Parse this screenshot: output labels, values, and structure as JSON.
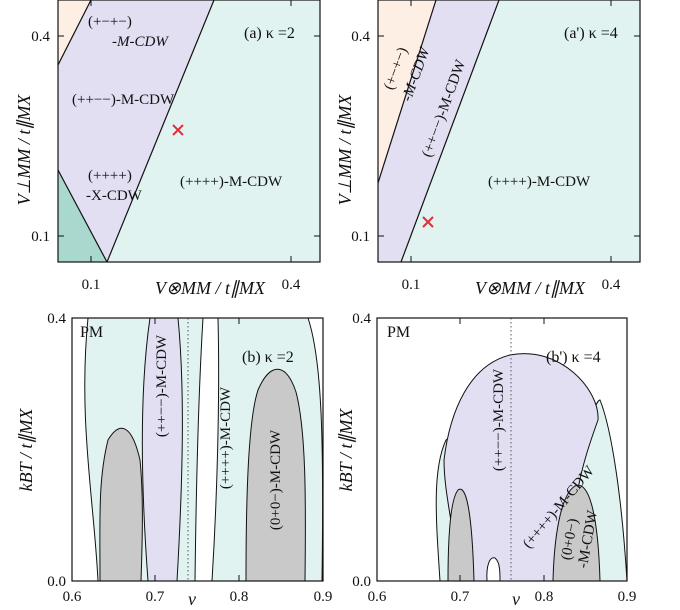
{
  "chart_data": [
    {
      "panel": "a",
      "type": "area",
      "title": "(a) κ =2",
      "xlabel": "V⊗MM / t∥MX",
      "ylabel": "V⊥MM / t∥MX",
      "xlim": [
        0.06,
        0.46
      ],
      "ylim": [
        0.06,
        0.46
      ],
      "xticks": [
        "0.1",
        "0.4"
      ],
      "yticks": [
        "0.1",
        "0.4"
      ],
      "regions": [
        {
          "label": "(+−+−)-M-CDW",
          "color": "#fdefe4",
          "polygon": [
            [
              0.06,
              0.46
            ],
            [
              0.06,
              0.36
            ],
            [
              0.11,
              0.46
            ]
          ]
        },
        {
          "label": "(++−−)-M-CDW",
          "color": "#e2dff2",
          "polygon": [
            [
              0.06,
              0.36
            ],
            [
              0.11,
              0.46
            ],
            [
              0.298,
              0.46
            ],
            [
              0.135,
              0.06
            ],
            [
              0.06,
              0.2
            ]
          ]
        },
        {
          "label": "(++++)-X-CDW",
          "color": "#a9d8cf",
          "polygon": [
            [
              0.06,
              0.2
            ],
            [
              0.06,
              0.06
            ],
            [
              0.135,
              0.06
            ]
          ]
        },
        {
          "label": "(++++)-M-CDW",
          "color": "#e0f3f1",
          "polygon": [
            [
              0.298,
              0.46
            ],
            [
              0.46,
              0.46
            ],
            [
              0.46,
              0.06
            ],
            [
              0.135,
              0.06
            ]
          ]
        }
      ],
      "marker": {
        "x": 0.22,
        "y": 0.258,
        "symbol": "x",
        "color": "#e0303a"
      }
    },
    {
      "panel": "a'",
      "type": "area",
      "title": "(a') κ =4",
      "xlabel": "V⊗MM / t∥MX",
      "ylabel": "V⊥MM / t∥MX",
      "xlim": [
        0.06,
        0.46
      ],
      "ylim": [
        0.06,
        0.46
      ],
      "xticks": [
        "0.1",
        "0.4"
      ],
      "yticks": [
        "0.1",
        "0.4"
      ],
      "regions": [
        {
          "label": "(+−+−)-M-CDW",
          "color": "#fdefe4",
          "polygon": [
            [
              0.06,
              0.46
            ],
            [
              0.06,
              0.18
            ],
            [
              0.148,
              0.46
            ]
          ]
        },
        {
          "label": "(++−−)-M-CDW",
          "color": "#e2dff2",
          "polygon": [
            [
              0.06,
              0.18
            ],
            [
              0.148,
              0.46
            ],
            [
              0.244,
              0.46
            ],
            [
              0.095,
              0.06
            ],
            [
              0.06,
              0.06
            ]
          ]
        },
        {
          "label": "(++++)-M-CDW",
          "color": "#e0f3f1",
          "polygon": [
            [
              0.244,
              0.46
            ],
            [
              0.46,
              0.46
            ],
            [
              0.46,
              0.06
            ],
            [
              0.095,
              0.06
            ]
          ]
        }
      ],
      "marker": {
        "x": 0.12,
        "y": 0.109,
        "symbol": "x",
        "color": "#e0303a"
      }
    },
    {
      "panel": "b",
      "type": "area",
      "title": "(b) κ =2",
      "xlabel": "ν",
      "ylabel": "kBT / t∥MX",
      "xlim": [
        0.6,
        0.9
      ],
      "ylim": [
        0.0,
        0.4
      ],
      "xticks": [
        "0.6",
        "0.7",
        "0.8",
        "0.9"
      ],
      "yticks": [
        "0.0",
        "0.4"
      ],
      "regions": [
        {
          "label": "PM",
          "color": "#ffffff"
        },
        {
          "label": "(++−−)-M-CDW",
          "color": "#e2dff2",
          "outline": [
            [
              0.728,
              0.0
            ],
            [
              0.718,
              0.1
            ],
            [
              0.712,
              0.25
            ],
            [
              0.72,
              0.35
            ],
            [
              0.73,
              0.4
            ],
            [
              0.778,
              0.4
            ],
            [
              0.781,
              0.3
            ],
            [
              0.775,
              0.15
            ],
            [
              0.762,
              0.0
            ]
          ]
        },
        {
          "label": "(++++)-M-CDW",
          "color": "#e0f3f1"
        },
        {
          "label": "(0+0−)-M-CDW",
          "color": "#c9c9c9",
          "outline": [
            [
              0.806,
              0.0
            ],
            [
              0.812,
              0.1
            ],
            [
              0.825,
              0.18
            ],
            [
              0.845,
              0.213
            ],
            [
              0.865,
              0.185
            ],
            [
              0.875,
              0.1
            ],
            [
              0.878,
              0.0
            ]
          ]
        },
        {
          "label": "",
          "color": "#c9c9c9",
          "outline": [
            [
              0.645,
              0.0
            ],
            [
              0.648,
              0.1
            ],
            [
              0.66,
              0.165
            ],
            [
              0.675,
              0.175
            ],
            [
              0.695,
              0.12
            ],
            [
              0.712,
              0.05
            ],
            [
              0.718,
              0.0
            ]
          ]
        }
      ],
      "vline_x": 0.75,
      "annotations": [
        "PM",
        "(++−−)-M-CDW",
        "(++++)-M-CDW",
        "(0+0−)-M-CDW"
      ]
    },
    {
      "panel": "b'",
      "type": "area",
      "title": "(b') κ =4",
      "xlabel": "ν",
      "ylabel": "kBT / t∥MX",
      "xlim": [
        0.6,
        0.9
      ],
      "ylim": [
        0.0,
        0.4
      ],
      "xticks": [
        "0.6",
        "0.7",
        "0.8",
        "0.9"
      ],
      "yticks": [
        "0.0",
        "0.4"
      ],
      "regions": [
        {
          "label": "PM",
          "color": "#ffffff"
        },
        {
          "label": "(++−−)-M-CDW",
          "color": "#e2dff2",
          "outline": [
            [
              0.664,
              0.18
            ],
            [
              0.68,
              0.27
            ],
            [
              0.72,
              0.33
            ],
            [
              0.75,
              0.34
            ],
            [
              0.79,
              0.315
            ],
            [
              0.83,
              0.24
            ],
            [
              0.842,
              0.21
            ],
            [
              0.8,
              0.13
            ],
            [
              0.775,
              0.0
            ],
            [
              0.7,
              0.0
            ],
            [
              0.672,
              0.14
            ]
          ]
        },
        {
          "label": "(++++)-M-CDW",
          "color": "#e0f3f1"
        },
        {
          "label": "(0+0−)-M-CDW",
          "color": "#c9c9c9",
          "outline": [
            [
              0.803,
              0.0
            ],
            [
              0.808,
              0.08
            ],
            [
              0.822,
              0.14
            ],
            [
              0.835,
              0.145
            ],
            [
              0.85,
              0.1
            ],
            [
              0.856,
              0.0
            ]
          ]
        },
        {
          "label": "",
          "color": "#c9c9c9",
          "outline": [
            [
              0.674,
              0.0
            ],
            [
              0.677,
              0.09
            ],
            [
              0.685,
              0.13
            ],
            [
              0.695,
              0.1
            ],
            [
              0.702,
              0.0
            ]
          ]
        }
      ],
      "vline_x": 0.75,
      "annotations": [
        "PM",
        "(++−−)-M-CDW",
        "(++++)-M-CDW",
        "(0+0−)-M-CDW"
      ]
    }
  ],
  "labels": {
    "a_title": "(a) κ =2",
    "ap_title": "(a') κ =4",
    "b_title": "(b) κ =2",
    "bp_title": "(b') κ =4",
    "a_r1a": "(+−+−)",
    "a_r1b": "-M-CDW",
    "a_r2": "(++−−)-M-CDW",
    "a_r3a": "(++++)",
    "a_r3b": "-X-CDW",
    "a_r4": "(++++)-M-CDW",
    "ap_r1a": "(+−+−)",
    "ap_r1b": "-M-CDW",
    "ap_r2": "(++−−)-M-CDW",
    "ap_r4": "(++++)-M-CDW",
    "pm": "PM",
    "b_r2": "(++−−)-M-CDW",
    "b_r3": "(++++)-M-CDW",
    "b_r4": "(0+0−)-M-CDW",
    "bp_r2": "(++−−)-M-CDW",
    "bp_r3": "(++++)-M-CDW",
    "bp_r4a": "(0+0−)",
    "bp_r4b": "-M-CDW",
    "ylab_top": "V⊥MM / t∥MX",
    "xlab_top": "V⊗MM / t∥MX",
    "ylab_bot": "kBT / t∥MX",
    "xlab_bot": "ν",
    "tick_01": "0.1",
    "tick_04": "0.4",
    "tick_00": "0.0",
    "tick_06": "0.6",
    "tick_07": "0.7",
    "tick_08": "0.8",
    "tick_09": "0.9"
  }
}
